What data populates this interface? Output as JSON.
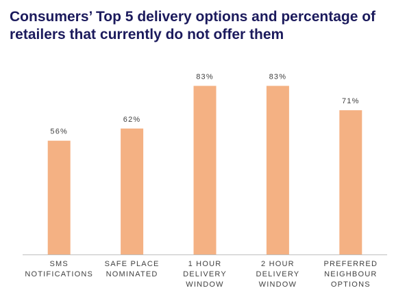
{
  "chart_data": {
    "type": "bar",
    "title": "Consumers’ Top 5 delivery options and percentage of retailers that currently do not offer them",
    "categories": [
      [
        "SMS",
        "NOTIFICATIONS"
      ],
      [
        "SAFE PLACE",
        "NOMINATED"
      ],
      [
        "1 HOUR",
        "DELIVERY",
        "WINDOW"
      ],
      [
        "2 HOUR",
        "DELIVERY",
        "WINDOW"
      ],
      [
        "PREFERRED",
        "NEIGHBOUR",
        "OPTIONS"
      ]
    ],
    "values": [
      56,
      62,
      83,
      83,
      71
    ],
    "value_labels": [
      "56%",
      "62%",
      "83%",
      "83%",
      "71%"
    ],
    "color": "#f4b183",
    "ylim": [
      0,
      100
    ]
  }
}
